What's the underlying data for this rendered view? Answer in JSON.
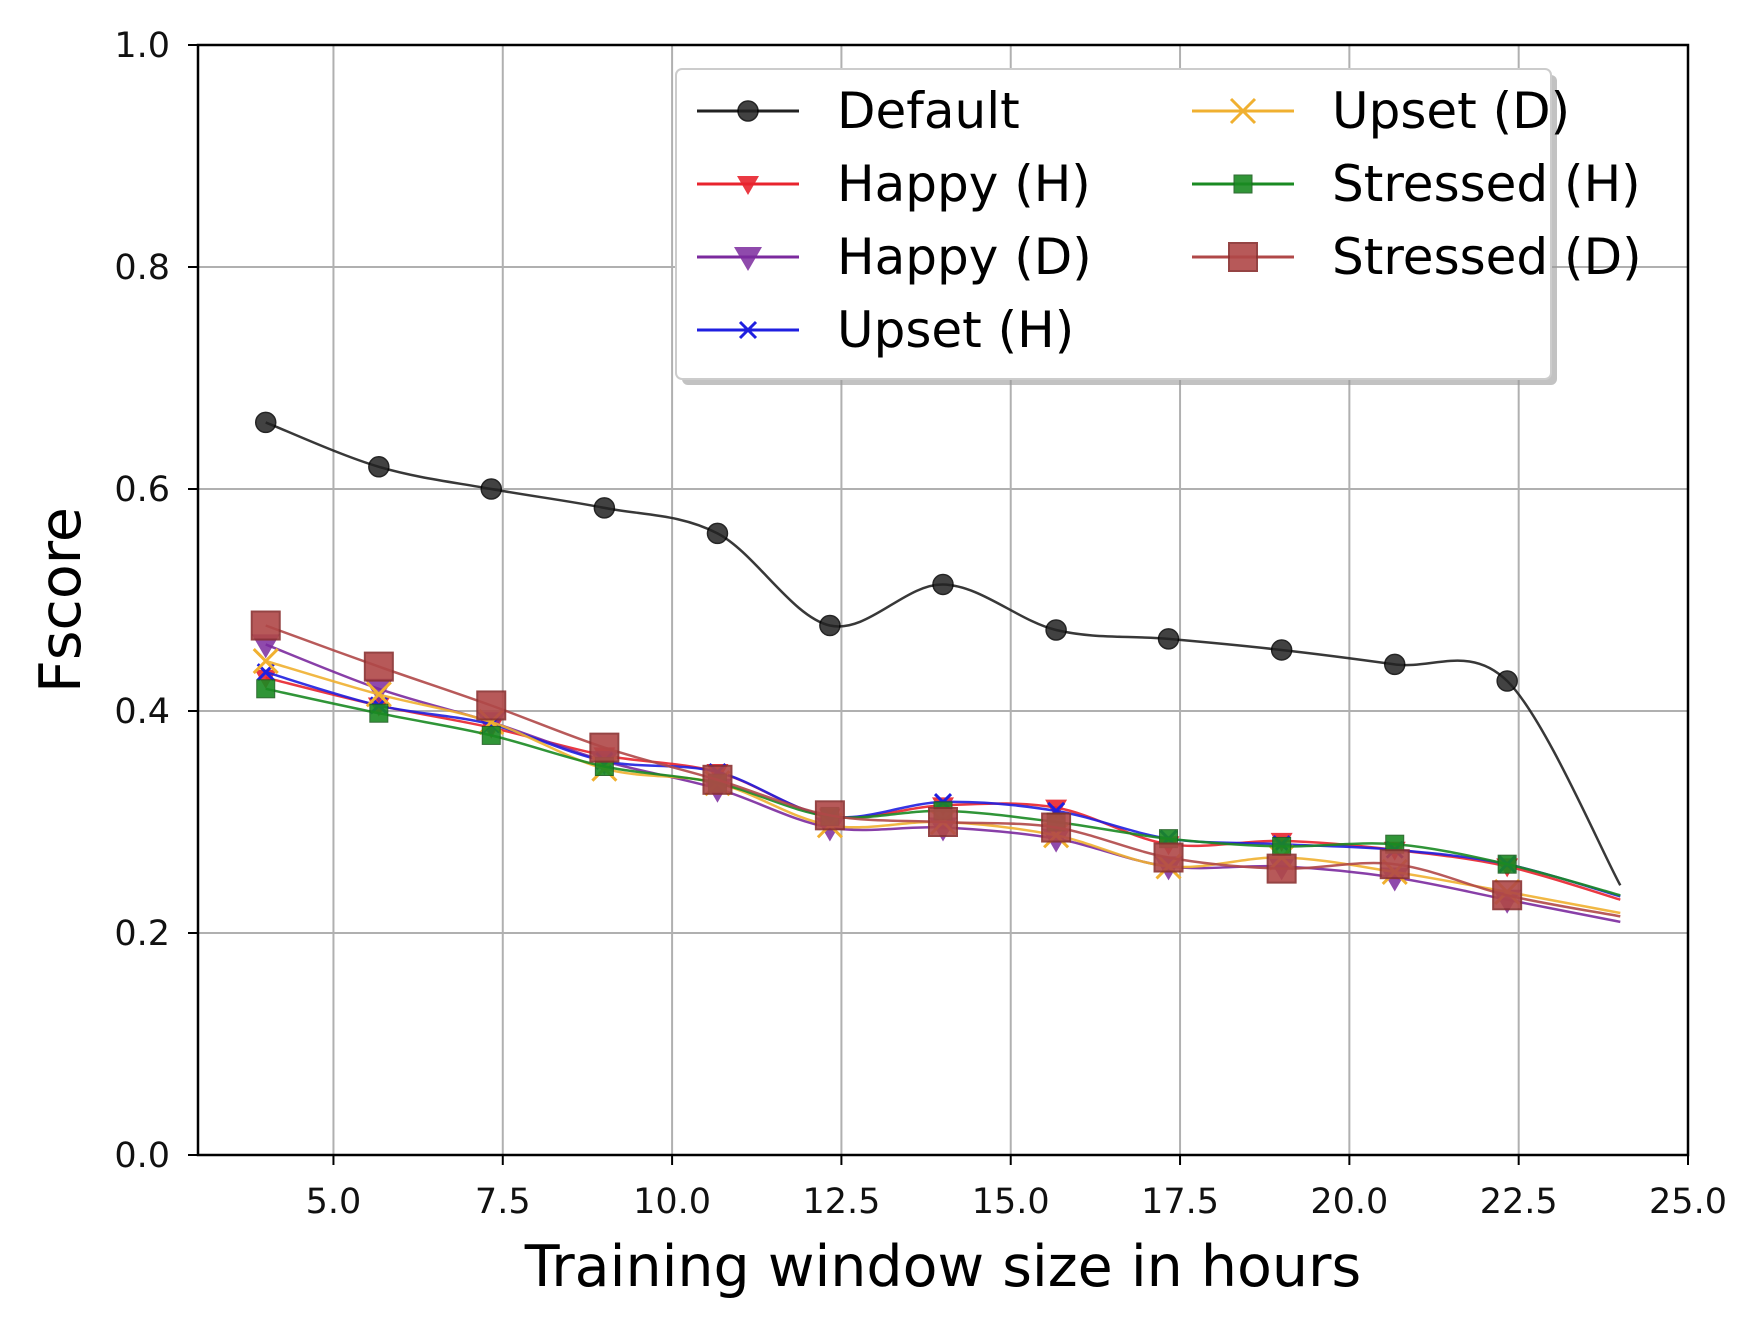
{
  "chart_data": {
    "type": "line",
    "title": "",
    "xlabel": "Training window size in hours",
    "ylabel": "Fscore",
    "xlim": [
      3,
      25
    ],
    "ylim": [
      0,
      1.0
    ],
    "xticks": [
      "5.0",
      "7.5",
      "10.0",
      "12.5",
      "15.0",
      "17.5",
      "20.0",
      "22.5",
      "25.0"
    ],
    "yticks": [
      "0.0",
      "0.2",
      "0.4",
      "0.6",
      "0.8",
      "1.0"
    ],
    "grid": true,
    "legend_position": "top-right",
    "x": [
      4.0,
      5.67,
      7.33,
      9.0,
      10.67,
      12.33,
      14.0,
      15.67,
      17.33,
      19.0,
      20.67,
      22.33,
      24.0
    ],
    "series": [
      {
        "name": "Default",
        "color": "#222222",
        "marker": "circle",
        "values": [
          0.66,
          0.62,
          0.6,
          0.583,
          0.56,
          0.477,
          0.514,
          0.473,
          0.465,
          0.455,
          0.442,
          0.427,
          0.243
        ]
      },
      {
        "name": "Happy (H)",
        "color": "#e8232d",
        "marker": "triangle-down-small",
        "values": [
          0.43,
          0.405,
          0.385,
          0.36,
          0.345,
          0.305,
          0.315,
          0.313,
          0.28,
          0.283,
          0.275,
          0.26,
          0.23
        ]
      },
      {
        "name": "Happy (D)",
        "color": "#7b2a9e",
        "marker": "triangle-down",
        "values": [
          0.46,
          0.42,
          0.39,
          0.355,
          0.33,
          0.295,
          0.295,
          0.285,
          0.26,
          0.26,
          0.25,
          0.23,
          0.21
        ]
      },
      {
        "name": "Upset (H)",
        "color": "#1f1fe0",
        "marker": "x",
        "values": [
          0.435,
          0.405,
          0.388,
          0.355,
          0.345,
          0.305,
          0.318,
          0.31,
          0.285,
          0.28,
          0.275,
          0.262,
          0.233
        ]
      },
      {
        "name": "Upset (D)",
        "color": "#f0b030",
        "marker": "x-large",
        "values": [
          0.445,
          0.415,
          0.39,
          0.348,
          0.335,
          0.297,
          0.3,
          0.288,
          0.26,
          0.268,
          0.255,
          0.237,
          0.218
        ]
      },
      {
        "name": "Stressed (H)",
        "color": "#1a8a22",
        "marker": "square-small",
        "values": [
          0.42,
          0.398,
          0.378,
          0.35,
          0.335,
          0.305,
          0.31,
          0.3,
          0.285,
          0.278,
          0.28,
          0.262,
          0.234
        ]
      },
      {
        "name": "Stressed (D)",
        "color": "#b04848",
        "marker": "square",
        "values": [
          0.477,
          0.44,
          0.405,
          0.367,
          0.338,
          0.306,
          0.3,
          0.295,
          0.268,
          0.258,
          0.262,
          0.234,
          0.215
        ]
      }
    ]
  }
}
